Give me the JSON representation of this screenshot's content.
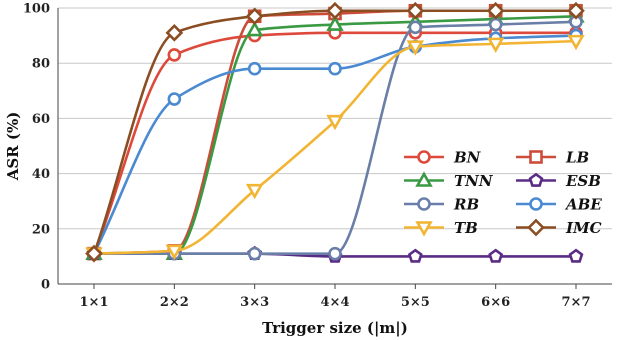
{
  "chart_data": {
    "type": "line",
    "categories": [
      "1×1",
      "2×2",
      "3×3",
      "4×4",
      "5×5",
      "6×6",
      "7×7"
    ],
    "xlabel": "Trigger size (|m|)",
    "ylabel": "ASR (%)",
    "ylim": [
      0,
      100
    ],
    "yticks": [
      0,
      20,
      40,
      60,
      80,
      100
    ],
    "grid": "horizontal",
    "legend_placement": "lower-right, inside, two columns",
    "series": [
      {
        "name": "BN",
        "color": "#dd4a3b",
        "marker": "circle",
        "values": [
          11,
          83,
          90,
          91,
          91,
          91,
          91
        ]
      },
      {
        "name": "LB",
        "color": "#cc4c3a",
        "marker": "square",
        "values": [
          11,
          12,
          97,
          98,
          99,
          99,
          99
        ]
      },
      {
        "name": "TNN",
        "color": "#3a9a44",
        "marker": "triangle-up",
        "values": [
          11,
          11,
          92,
          94,
          95,
          96,
          97
        ]
      },
      {
        "name": "ESB",
        "color": "#5b2c86",
        "marker": "pentagon",
        "values": [
          11,
          11,
          11,
          10,
          10,
          10,
          10
        ]
      },
      {
        "name": "RB",
        "color": "#6a7fa8",
        "marker": "circle",
        "values": [
          11,
          11,
          11,
          11,
          93,
          94,
          95
        ]
      },
      {
        "name": "ABE",
        "color": "#4a8ad1",
        "marker": "circle",
        "values": [
          11,
          67,
          78,
          78,
          86,
          89,
          90
        ]
      },
      {
        "name": "TB",
        "color": "#f2b533",
        "marker": "triangle-down",
        "values": [
          11,
          12,
          34,
          59,
          86,
          87,
          88
        ]
      },
      {
        "name": "IMC",
        "color": "#8b4d22",
        "marker": "diamond",
        "values": [
          11,
          91,
          97,
          99,
          99,
          99,
          99
        ]
      }
    ]
  }
}
